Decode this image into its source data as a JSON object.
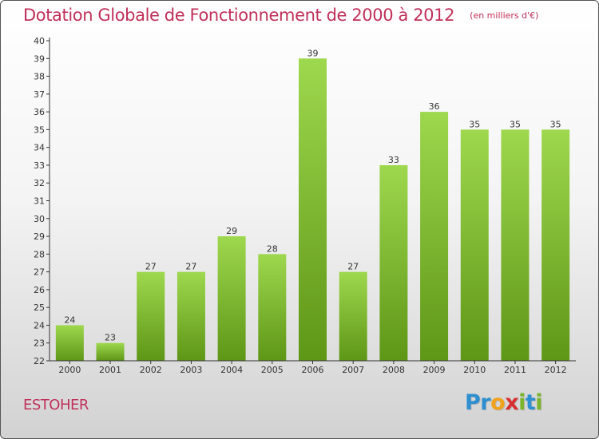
{
  "title": "Dotation Globale de Fonctionnement de 2000 à 2012",
  "unit": "(en milliers d'€)",
  "commune": "ESTOHER",
  "logo": {
    "letters": [
      {
        "char": "P",
        "color": "#2e8fd0"
      },
      {
        "char": "r",
        "color": "#2e8fd0"
      },
      {
        "char": "o",
        "color": "#f0a21c"
      },
      {
        "char": "x",
        "color": "#d83030"
      },
      {
        "char": "i",
        "color": "#7ab52c"
      },
      {
        "char": "t",
        "color": "#2e8fd0"
      },
      {
        "char": "i",
        "color": "#7ab52c"
      }
    ]
  },
  "colors": {
    "title": "#c0305a",
    "bar_top": "#9ed84e",
    "bar_bottom": "#5e9616",
    "axis": "#333333"
  },
  "chart_data": {
    "type": "bar",
    "categories": [
      "2000",
      "2001",
      "2002",
      "2003",
      "2004",
      "2005",
      "2006",
      "2007",
      "2008",
      "2009",
      "2010",
      "2011",
      "2012"
    ],
    "values": [
      24,
      23,
      27,
      27,
      29,
      28,
      39,
      27,
      33,
      36,
      35,
      35,
      35
    ],
    "ylim": [
      22,
      40
    ],
    "yticks": [
      22,
      23,
      24,
      25,
      26,
      27,
      28,
      29,
      30,
      31,
      32,
      33,
      34,
      35,
      36,
      37,
      38,
      39,
      40
    ],
    "grid": false
  }
}
